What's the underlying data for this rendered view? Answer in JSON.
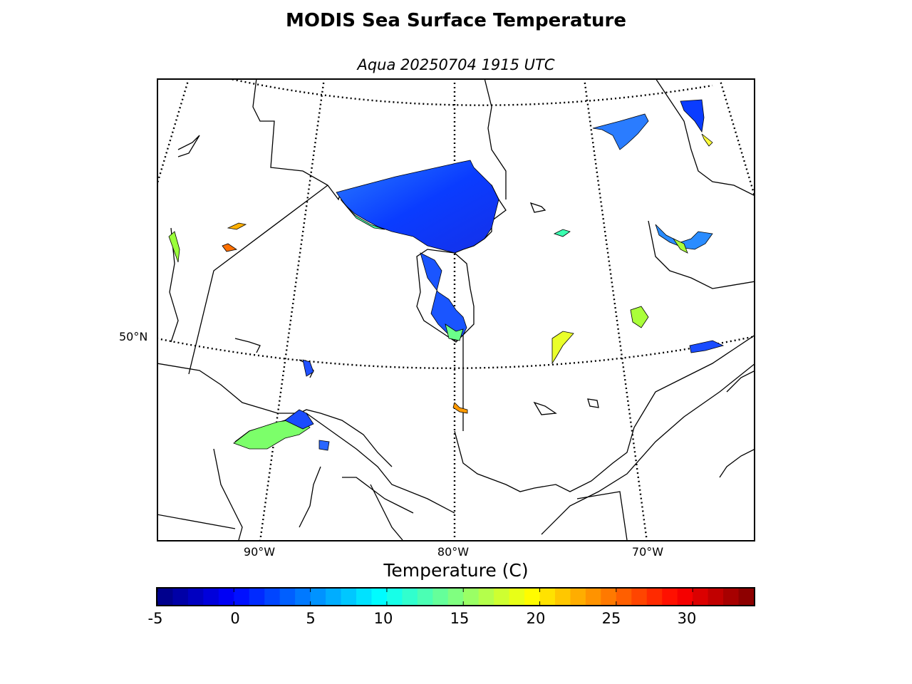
{
  "header": {
    "title": "MODIS Sea Surface Temperature",
    "subtitle": "Aqua 20250704 1915 UTC"
  },
  "map": {
    "projection": "polar stereographic / conic",
    "lat_labels": [
      "50°N"
    ],
    "lon_labels": [
      "90°W",
      "80°W",
      "70°W"
    ],
    "graticule_style": "dotted"
  },
  "colorbar": {
    "label": "Temperature (C)",
    "colormap": "jet",
    "min": -5,
    "max": 34,
    "ticks": [
      "-5",
      "0",
      "5",
      "10",
      "15",
      "20",
      "25",
      "30"
    ],
    "colors": {
      "dark_blue": "#00007f",
      "blue": "#0000ff",
      "cyan": "#00ffff",
      "yellow": "#ffff00",
      "red": "#ff0000",
      "dark_red": "#7f0000"
    }
  }
}
